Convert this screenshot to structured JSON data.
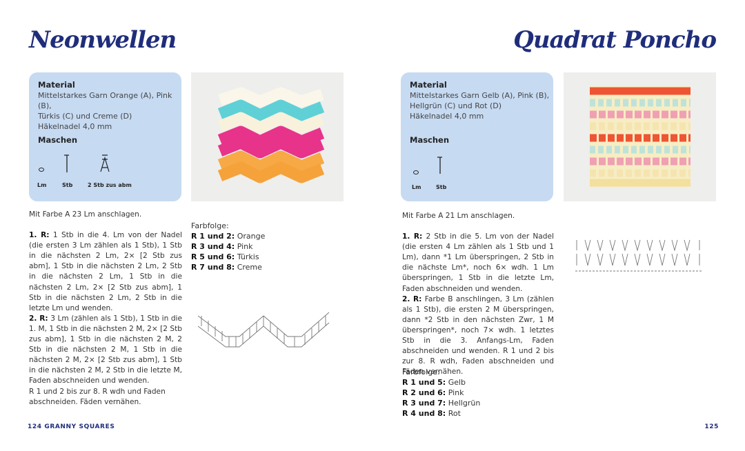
{
  "left": {
    "title": "Neonwellen",
    "material": {
      "heading": "Material",
      "lines": [
        "Mittelstarkes Garn Orange (A), Pink (B),",
        "Türkis (C) und Creme (D)",
        "Häkelnadel 4,0 mm"
      ]
    },
    "stitches": {
      "heading": "Maschen",
      "labels": [
        "Lm",
        "Stb",
        "2 Stb zus abm"
      ]
    },
    "intro": "Mit Farbe A 23 Lm anschlagen.",
    "rows": [
      {
        "label": "1. R:",
        "text": "1 Stb in die 4. Lm von der Nadel (die ersten 3 Lm zählen als 1 Stb), 1 Stb in die nächsten 2 Lm, 2× [2 Stb zus abm], 1 Stb in die nächsten 2 Lm, 2 Stb in die nächsten 2 Lm, 1 Stb in die nächsten 2 Lm, 2× [2 Stb zus abm], 1 Stb in die nächsten 2 Lm, 2 Stb in die letzte Lm und wenden."
      },
      {
        "label": "2. R:",
        "text": "3 Lm (zählen als 1 Stb), 1 Stb in die 1. M, 1 Stb in die nächsten 2 M, 2× [2 Stb zus abm], 1 Stb in die nächsten 2 M, 2 Stb in die nächsten 2 M, 1 Stb in die nächsten 2 M, 2× [2 Stb zus abm], 1 Stb in die nächsten 2 M, 2 Stb in die letzte M, Faden abschneiden und wenden."
      }
    ],
    "closing": "R 1 und 2 bis zur 8. R wdh und Faden abschneiden. Fäden vernähen.",
    "colors": {
      "heading": "Farbfolge:",
      "items": [
        {
          "rows": "R 1 und 2:",
          "color": "Orange"
        },
        {
          "rows": "R 3 und 4:",
          "color": "Pink"
        },
        {
          "rows": "R 5 und 6:",
          "color": "Türkis"
        },
        {
          "rows": "R 7 und 8:",
          "color": "Creme"
        }
      ]
    }
  },
  "right": {
    "title": "Quadrat Poncho",
    "material": {
      "heading": "Material",
      "lines": [
        "Mittelstarkes Garn Gelb (A), Pink (B),",
        "Hellgrün (C) und Rot (D)",
        "Häkelnadel 4,0 mm"
      ]
    },
    "stitches": {
      "heading": "Maschen",
      "labels": [
        "Lm",
        "Stb"
      ]
    },
    "intro": "Mit Farbe A 21 Lm anschlagen.",
    "rows": [
      {
        "label": "1. R:",
        "text": "2 Stb in die 5. Lm von der Nadel (die ersten 4 Lm zählen als 1 Stb und 1 Lm), dann *1 Lm überspringen, 2 Stb in die nächste Lm*, noch 6× wdh. 1 Lm überspringen, 1 Stb in die letzte Lm, Faden abschneiden und wenden."
      },
      {
        "label": "2. R:",
        "text": "Farbe B anschlingen, 3 Lm (zählen als 1 Stb), die ersten 2 M überspringen, dann *2 Stb in den nächsten Zwr, 1 M überspringen*, noch 7× wdh. 1 letztes Stb in die 3. Anfangs-Lm, Faden abschneiden und wenden. R 1 und 2 bis zur 8. R wdh, Faden abschneiden und Fäden vernähen."
      }
    ],
    "colors": {
      "heading": "Farbfolge:",
      "items": [
        {
          "rows": "R 1 und 5:",
          "color": "Gelb"
        },
        {
          "rows": "R 2 und 6:",
          "color": "Pink"
        },
        {
          "rows": "R 3 und 7:",
          "color": "Hellgrün"
        },
        {
          "rows": "R 4 und 8:",
          "color": "Rot"
        }
      ]
    }
  },
  "footer": {
    "left_page": "124",
    "running_head": "GRANNY SQUARES",
    "right_page": "125"
  }
}
